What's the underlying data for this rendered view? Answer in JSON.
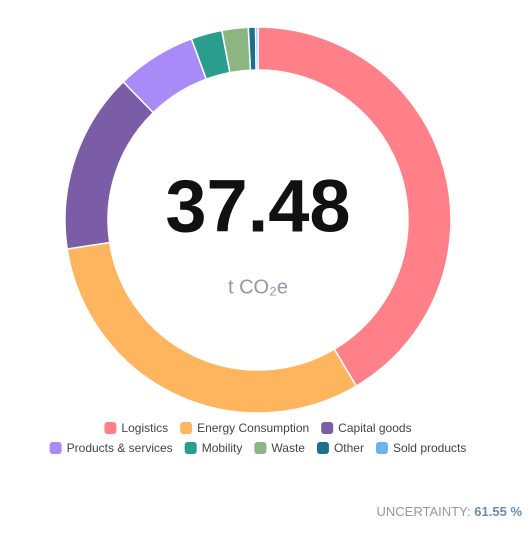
{
  "chart_data": {
    "type": "donut",
    "total": 37.48,
    "unit": "t CO₂e",
    "categories": [
      "Logistics",
      "Energy Consumption",
      "Capital goods",
      "Products & services",
      "Mobility",
      "Waste",
      "Other",
      "Sold products"
    ],
    "values": [
      41.5,
      31.1,
      15.1,
      6.7,
      2.6,
      2.2,
      0.6,
      0.2
    ],
    "colors": [
      "#ff8088",
      "#ffb55e",
      "#7a5da6",
      "#a98bf7",
      "#2a9d8f",
      "#8db581",
      "#1d6f8e",
      "#6cb4ee"
    ],
    "uncertainty": {
      "label": "UNCERTAINTY:",
      "value": "61.55 %"
    }
  }
}
